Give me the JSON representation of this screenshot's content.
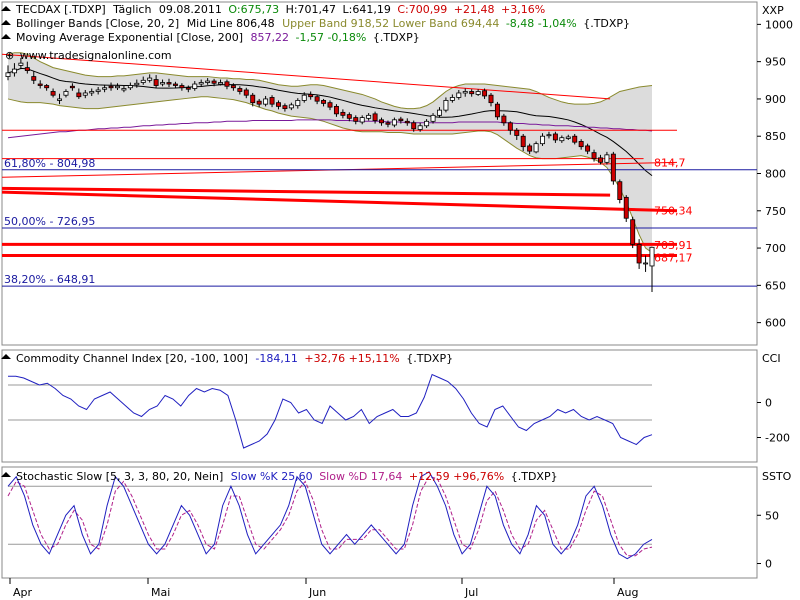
{
  "header": {
    "symbol": "TECDAX [.TDXP]",
    "interval": "Täglich",
    "date": "09.08.2011",
    "open": "O:675,73",
    "high": "H:701,47",
    "low": "L:641,19",
    "close": "C:700,99",
    "change": "+21,48",
    "change_pct": "+3,16%"
  },
  "indicators": {
    "bollinger": {
      "name": "Bollinger Bands [Close, 20, 2]",
      "mid": "Mid Line 806,48",
      "upper_lower": "Upper Band 918,52 Lower Band 694,44",
      "change": "-8,48 -1,04%",
      "symbol": "{.TDXP}"
    },
    "ema": {
      "name": "Moving Average Exponential [Close, 200]",
      "value": "857,22",
      "change": "-1,57 -0,18%",
      "symbol": "{.TDXP}"
    },
    "cci": {
      "name": "Commodity Channel Index [20, -100, 100]",
      "value": "-184,11",
      "change": "+32,76 +15,11%",
      "symbol": "{.TDXP}"
    },
    "stoch": {
      "name": "Stochastic Slow [5, 3, 3, 80, 20, Nein]",
      "k": "Slow %K 25,60",
      "d": "Slow %D 17,64",
      "change": "+12,59 +96,76%",
      "symbol": "{.TDXP}"
    }
  },
  "watermark": "www.tradesignalonline.com",
  "axis_titles": {
    "main": "XXP",
    "cci": "CCI",
    "stoch": "SSTO"
  },
  "fib_labels": [
    {
      "text": "61,80% - 804,98",
      "value": 804.98
    },
    {
      "text": "50,00% - 726,95",
      "value": 726.95
    },
    {
      "text": "38,20% - 648,91",
      "value": 648.91
    }
  ],
  "level_labels": [
    {
      "text": "814,7",
      "value": 814.7
    },
    {
      "text": "750,34",
      "value": 750.34
    },
    {
      "text": "703,91",
      "value": 703.91
    },
    {
      "text": "687,17",
      "value": 687.17
    }
  ],
  "colors": {
    "up": "#ffffff",
    "down": "#cc0000",
    "bollinger_fill": "#dcdcdc",
    "bollinger_band": "#8a8a2e",
    "ema": "#7a1a9a",
    "midline": "#000000",
    "fib": "#1a1aa0",
    "resistance": "#ff0000",
    "cci": "#2020c0",
    "stoch_k": "#2020c0",
    "stoch_d": "#b0208a",
    "panel_border": "#888888"
  },
  "chart_data": {
    "type": "candlestick",
    "x_labels": [
      "Apr",
      "Mai",
      "Jun",
      "Jul",
      "Aug"
    ],
    "main": {
      "ylim": [
        570,
        1030
      ],
      "yticks": [
        600,
        650,
        700,
        750,
        800,
        850,
        900,
        950,
        1000
      ],
      "close": [
        935,
        940,
        948,
        938,
        925,
        918,
        915,
        905,
        900,
        910,
        915,
        903,
        908,
        910,
        912,
        915,
        915,
        917,
        914,
        918,
        921,
        925,
        928,
        918,
        922,
        920,
        918,
        915,
        913,
        920,
        922,
        924,
        921,
        922,
        917,
        915,
        910,
        905,
        895,
        893,
        900,
        893,
        890,
        887,
        892,
        898,
        905,
        903,
        897,
        894,
        889,
        880,
        878,
        874,
        870,
        875,
        878,
        871,
        868,
        866,
        872,
        871,
        868,
        860,
        864,
        870,
        878,
        885,
        898,
        902,
        908,
        910,
        907,
        910,
        904,
        895,
        876,
        868,
        858,
        851,
        836,
        830,
        840,
        850,
        852,
        845,
        848,
        849,
        842,
        836,
        830,
        820,
        815,
        825,
        790,
        765,
        740,
        705,
        680,
        680,
        701
      ],
      "open": [
        930,
        935,
        945,
        942,
        930,
        920,
        918,
        910,
        898,
        905,
        917,
        908,
        905,
        908,
        910,
        913,
        917,
        915,
        912,
        915,
        919,
        922,
        925,
        926,
        920,
        922,
        920,
        918,
        915,
        914,
        920,
        922,
        924,
        920,
        923,
        918,
        914,
        912,
        905,
        897,
        893,
        902,
        895,
        891,
        888,
        891,
        898,
        906,
        903,
        898,
        895,
        890,
        882,
        879,
        875,
        869,
        874,
        880,
        872,
        868,
        865,
        873,
        870,
        868,
        859,
        864,
        870,
        878,
        885,
        898,
        902,
        908,
        910,
        906,
        911,
        905,
        893,
        877,
        868,
        858,
        850,
        837,
        829,
        840,
        851,
        853,
        844,
        847,
        850,
        843,
        837,
        828,
        821,
        815,
        826,
        789,
        768,
        738,
        705,
        679,
        676
      ],
      "high": [
        945,
        948,
        955,
        950,
        937,
        925,
        920,
        914,
        907,
        913,
        921,
        914,
        912,
        914,
        916,
        919,
        922,
        921,
        918,
        922,
        926,
        930,
        933,
        932,
        926,
        927,
        923,
        921,
        918,
        924,
        926,
        928,
        927,
        926,
        926,
        921,
        917,
        915,
        908,
        900,
        904,
        905,
        898,
        894,
        895,
        901,
        909,
        910,
        906,
        900,
        898,
        893,
        886,
        882,
        878,
        878,
        881,
        883,
        875,
        871,
        875,
        876,
        874,
        871,
        868,
        873,
        881,
        889,
        902,
        906,
        912,
        914,
        913,
        913,
        914,
        908,
        896,
        880,
        870,
        861,
        853,
        840,
        843,
        854,
        856,
        856,
        851,
        852,
        853,
        846,
        840,
        832,
        825,
        829,
        829,
        792,
        771,
        742,
        712,
        690,
        702
      ],
      "low": [
        925,
        930,
        940,
        934,
        920,
        914,
        911,
        902,
        893,
        902,
        911,
        900,
        901,
        904,
        906,
        909,
        911,
        912,
        909,
        912,
        915,
        919,
        922,
        915,
        917,
        916,
        914,
        911,
        909,
        911,
        916,
        919,
        917,
        918,
        913,
        911,
        906,
        901,
        890,
        889,
        890,
        889,
        886,
        883,
        885,
        887,
        895,
        899,
        893,
        890,
        885,
        876,
        874,
        870,
        866,
        866,
        871,
        867,
        864,
        862,
        862,
        867,
        864,
        856,
        856,
        861,
        867,
        875,
        882,
        895,
        899,
        903,
        903,
        904,
        900,
        890,
        872,
        864,
        852,
        845,
        830,
        826,
        827,
        837,
        847,
        841,
        841,
        845,
        839,
        832,
        826,
        816,
        812,
        812,
        785,
        760,
        735,
        700,
        672,
        668,
        641
      ],
      "bollinger_upper": [
        960,
        962,
        962,
        960,
        955,
        950,
        946,
        942,
        940,
        938,
        936,
        934,
        932,
        931,
        930,
        930,
        930,
        931,
        931,
        932,
        933,
        934,
        935,
        935,
        934,
        933,
        932,
        931,
        930,
        930,
        930,
        930,
        929,
        928,
        928,
        927,
        927,
        926,
        926,
        925,
        923,
        921,
        919,
        918,
        917,
        917,
        918,
        919,
        919,
        918,
        916,
        914,
        912,
        910,
        908,
        906,
        903,
        900,
        896,
        893,
        890,
        888,
        887,
        887,
        888,
        891,
        896,
        903,
        910,
        915,
        918,
        920,
        920,
        920,
        920,
        919,
        918,
        917,
        916,
        915,
        914,
        913,
        910,
        906,
        902,
        899,
        896,
        894,
        893,
        893,
        893,
        894,
        896,
        900,
        905,
        910,
        912,
        914,
        916,
        917,
        918
      ],
      "bollinger_lower": [
        900,
        898,
        896,
        895,
        895,
        895,
        894,
        893,
        891,
        890,
        889,
        888,
        887,
        887,
        887,
        888,
        889,
        890,
        891,
        892,
        893,
        894,
        895,
        896,
        897,
        898,
        899,
        900,
        901,
        902,
        903,
        903,
        902,
        901,
        900,
        899,
        897,
        895,
        892,
        889,
        886,
        884,
        881,
        879,
        877,
        876,
        875,
        874,
        872,
        870,
        867,
        864,
        861,
        859,
        857,
        856,
        856,
        856,
        856,
        855,
        855,
        855,
        854,
        853,
        853,
        853,
        853,
        853,
        853,
        853,
        854,
        855,
        856,
        857,
        857,
        856,
        852,
        846,
        840,
        834,
        829,
        824,
        821,
        820,
        820,
        820,
        821,
        822,
        823,
        824,
        822,
        819,
        815,
        808,
        795,
        780,
        762,
        740,
        718,
        700,
        694
      ],
      "ema200": [
        848,
        849,
        850,
        851,
        852,
        853,
        854,
        855,
        856,
        856,
        857,
        858,
        858,
        859,
        860,
        860,
        861,
        861,
        862,
        862,
        863,
        864,
        864,
        865,
        865,
        866,
        866,
        867,
        867,
        868,
        868,
        868,
        869,
        869,
        870,
        870,
        870,
        870,
        871,
        871,
        871,
        871,
        871,
        871,
        871,
        872,
        872,
        872,
        872,
        872,
        872,
        871,
        871,
        871,
        870,
        870,
        870,
        870,
        870,
        869,
        869,
        869,
        868,
        868,
        868,
        868,
        868,
        868,
        868,
        868,
        869,
        869,
        869,
        869,
        869,
        869,
        869,
        868,
        868,
        867,
        867,
        866,
        866,
        865,
        865,
        864,
        864,
        864,
        863,
        863,
        862,
        862,
        861,
        861,
        860,
        860,
        859,
        859,
        858,
        858,
        857
      ],
      "fib_levels": [
        804.98,
        726.95,
        648.91
      ],
      "resistance_lines": [
        {
          "from": [
            0,
            960
          ],
          "to": [
            90,
            900
          ]
        },
        {
          "from": [
            0,
            858
          ],
          "to": [
            100,
            858
          ]
        },
        {
          "from": [
            0,
            820
          ],
          "to": [
            95,
            820
          ]
        },
        {
          "from": [
            0,
            780
          ],
          "to": [
            90,
            771
          ]
        },
        {
          "from": [
            0,
            775
          ],
          "to": [
            100,
            750
          ]
        },
        {
          "from": [
            0,
            705
          ],
          "to": [
            100,
            705
          ]
        },
        {
          "from": [
            0,
            690
          ],
          "to": [
            100,
            690
          ]
        },
        {
          "from": [
            0,
            795
          ],
          "to": [
            100,
            815
          ]
        }
      ],
      "volume_band_box": [
        0,
        950
      ]
    },
    "cci": {
      "ylim": [
        -340,
        300
      ],
      "yticks": [
        0,
        -200
      ],
      "levels": [
        100,
        -100
      ],
      "values": [
        150,
        150,
        140,
        120,
        100,
        110,
        80,
        40,
        20,
        -20,
        -40,
        20,
        40,
        60,
        20,
        -20,
        -60,
        -80,
        -40,
        -20,
        40,
        20,
        -20,
        40,
        80,
        60,
        80,
        70,
        40,
        -100,
        -260,
        -240,
        -220,
        -180,
        -100,
        20,
        0,
        -60,
        -40,
        -100,
        -120,
        -20,
        -60,
        -100,
        -80,
        -40,
        -120,
        -80,
        -60,
        -40,
        -80,
        -80,
        -60,
        30,
        160,
        140,
        120,
        80,
        20,
        -60,
        -120,
        -140,
        -40,
        -20,
        -80,
        -140,
        -160,
        -120,
        -100,
        -80,
        -40,
        -60,
        -40,
        -80,
        -100,
        -80,
        -100,
        -120,
        -200,
        -220,
        -240,
        -200,
        -184
      ]
    },
    "stoch": {
      "ylim": [
        -15,
        100
      ],
      "yticks": [
        50,
        0
      ],
      "levels": [
        80,
        20
      ],
      "k": [
        80,
        90,
        70,
        40,
        20,
        10,
        30,
        50,
        60,
        30,
        10,
        20,
        60,
        90,
        80,
        60,
        40,
        20,
        10,
        20,
        40,
        60,
        50,
        30,
        10,
        20,
        60,
        80,
        60,
        30,
        10,
        20,
        30,
        40,
        60,
        90,
        80,
        50,
        20,
        10,
        20,
        30,
        20,
        30,
        40,
        30,
        20,
        10,
        20,
        60,
        90,
        95,
        80,
        60,
        30,
        10,
        20,
        50,
        80,
        70,
        40,
        20,
        10,
        30,
        60,
        50,
        20,
        10,
        20,
        40,
        70,
        80,
        60,
        30,
        10,
        5,
        10,
        20,
        25
      ],
      "d": [
        70,
        85,
        80,
        55,
        30,
        15,
        20,
        40,
        55,
        45,
        20,
        15,
        40,
        75,
        85,
        70,
        50,
        30,
        15,
        15,
        30,
        50,
        55,
        40,
        20,
        15,
        40,
        70,
        70,
        45,
        20,
        15,
        25,
        35,
        50,
        75,
        85,
        65,
        35,
        15,
        15,
        25,
        25,
        25,
        35,
        35,
        25,
        15,
        15,
        40,
        75,
        90,
        88,
        70,
        45,
        20,
        15,
        35,
        65,
        75,
        55,
        30,
        15,
        20,
        45,
        55,
        35,
        15,
        15,
        30,
        55,
        75,
        70,
        45,
        20,
        8,
        8,
        15,
        17
      ]
    }
  }
}
